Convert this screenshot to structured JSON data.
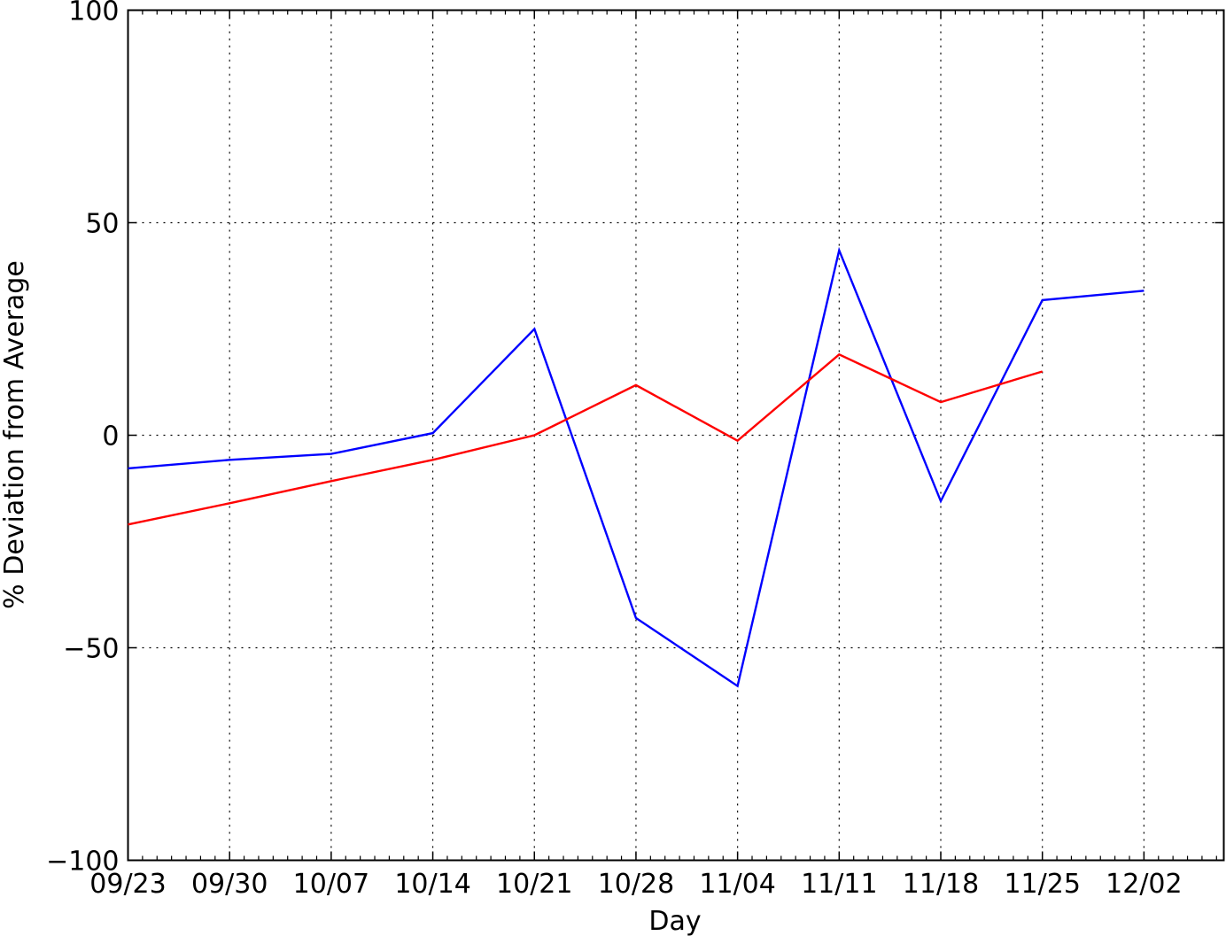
{
  "chart_data": {
    "type": "line",
    "xlabel": "Day",
    "ylabel": "% Deviation from Average",
    "ylim": [
      -100,
      100
    ],
    "y_ticks": [
      {
        "value": 100,
        "label": "100"
      },
      {
        "value": 50,
        "label": "50"
      },
      {
        "value": 0,
        "label": "0"
      },
      {
        "value": -50,
        "label": "−50"
      },
      {
        "value": -100,
        "label": "−100"
      }
    ],
    "x_ticks": [
      "09/23",
      "09/30",
      "10/07",
      "10/14",
      "10/21",
      "10/28",
      "11/04",
      "11/11",
      "11/18",
      "11/25",
      "12/02"
    ],
    "x_range_days": [
      0,
      75.5
    ],
    "grid": true,
    "series": [
      {
        "color": "#0000ff",
        "x": [
          0,
          7,
          14,
          21,
          28,
          35,
          42,
          49,
          56,
          63,
          70
        ],
        "values": [
          -7.8,
          -5.8,
          -4.4,
          0.5,
          25.0,
          -43.0,
          -59.0,
          43.5,
          -15.5,
          31.8,
          34.0
        ]
      },
      {
        "color": "#ff0000",
        "x": [
          0,
          7,
          14,
          21,
          28,
          35,
          42,
          49,
          56,
          63
        ],
        "values": [
          -21.0,
          -16.0,
          -10.8,
          -5.8,
          0.0,
          11.8,
          -1.3,
          19.0,
          7.8,
          15.0
        ]
      }
    ]
  }
}
